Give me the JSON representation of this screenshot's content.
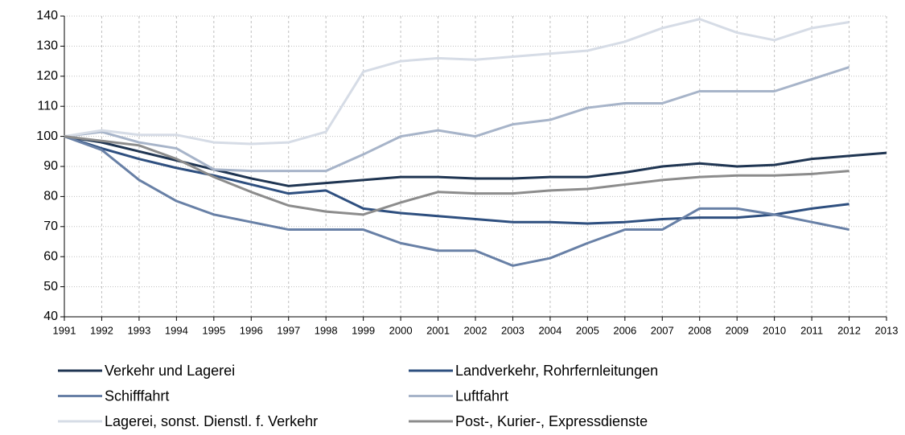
{
  "chart_data": {
    "type": "line",
    "categories": [
      "1991",
      "1992",
      "1993",
      "1994",
      "1995",
      "1996",
      "1997",
      "1998",
      "1999",
      "2000",
      "2001",
      "2002",
      "2003",
      "2004",
      "2005",
      "2006",
      "2007",
      "2008",
      "2009",
      "2010",
      "2011",
      "2012",
      "2013"
    ],
    "ylim": [
      40,
      140
    ],
    "yticks": [
      40,
      50,
      60,
      70,
      80,
      90,
      100,
      110,
      120,
      130,
      140
    ],
    "grid": true,
    "series": [
      {
        "name": "Verkehr und Lagerei",
        "color": "#1f3552",
        "values": [
          100,
          98,
          95,
          92,
          89,
          86,
          83.5,
          84.5,
          85.5,
          86.5,
          86.5,
          86,
          86,
          86.5,
          86.5,
          88,
          90,
          91,
          90,
          90.5,
          92.5,
          93.5,
          94.5
        ]
      },
      {
        "name": "Landverkehr, Rohrfernleitungen",
        "color": "#2e4f7f",
        "values": [
          100,
          96,
          92.5,
          89.5,
          87,
          84,
          81,
          82,
          76,
          74.5,
          73.5,
          72.5,
          71.5,
          71.5,
          71,
          71.5,
          72.5,
          73,
          73,
          74,
          76,
          77.5,
          null
        ]
      },
      {
        "name": "Schifffahrt",
        "color": "#6880a6",
        "values": [
          100,
          95.5,
          85.5,
          78.5,
          74,
          71.5,
          69,
          69,
          69,
          64.5,
          62,
          62,
          57,
          59.5,
          64.5,
          69,
          69,
          76,
          76,
          74,
          71.5,
          69,
          null
        ]
      },
      {
        "name": "Luftfahrt",
        "color": "#a7b4c9",
        "values": [
          100,
          101.5,
          98,
          96,
          89,
          88.5,
          88.5,
          88.5,
          94,
          100,
          102,
          100,
          104,
          105.5,
          109.5,
          111,
          111,
          115,
          115,
          115,
          119,
          123,
          null
        ]
      },
      {
        "name": "Lagerei, sonst. Dienstl. f. Verkehr",
        "color": "#d6dce6",
        "values": [
          100,
          102,
          100.5,
          100.5,
          98,
          97.5,
          98,
          101.5,
          121.5,
          125,
          126,
          125.5,
          126.5,
          127.5,
          128.5,
          131.5,
          136,
          139,
          134.5,
          132,
          136,
          138,
          null
        ]
      },
      {
        "name": "Post-, Kurier-, Expressdienste",
        "color": "#8c8c8c",
        "values": [
          100,
          98.5,
          97,
          92.5,
          86.5,
          81.5,
          77,
          75,
          74,
          78,
          81.5,
          81,
          81,
          82,
          82.5,
          84,
          85.5,
          86.5,
          87,
          87,
          87.5,
          88.5,
          null
        ]
      }
    ]
  }
}
